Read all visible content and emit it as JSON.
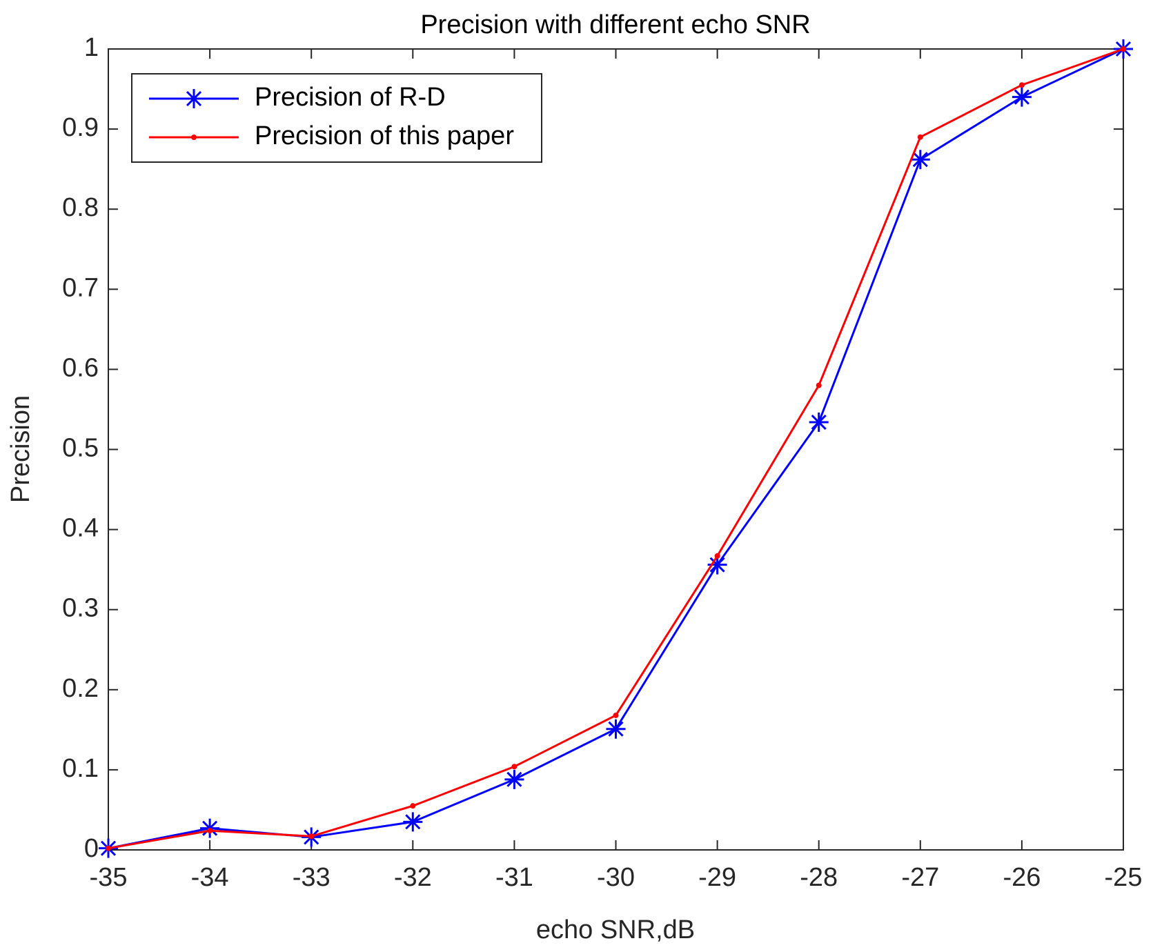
{
  "chart_data": {
    "type": "line",
    "title": "Precision with different echo SNR",
    "xlabel": "echo SNR,dB",
    "ylabel": "Precision",
    "x": [
      -35,
      -34,
      -33,
      -32,
      -31,
      -30,
      -29,
      -28,
      -27,
      -26,
      -25
    ],
    "series": [
      {
        "name": "Precision of R-D",
        "color": "#0000ff",
        "marker": "asterisk",
        "values": [
          0.002,
          0.027,
          0.016,
          0.035,
          0.088,
          0.151,
          0.356,
          0.534,
          0.862,
          0.94,
          1.0
        ]
      },
      {
        "name": "Precision of this paper",
        "color": "#ff0000",
        "marker": "dot",
        "values": [
          0.002,
          0.024,
          0.017,
          0.055,
          0.104,
          0.168,
          0.367,
          0.58,
          0.89,
          0.955,
          1.0
        ]
      }
    ],
    "xlim": [
      -35,
      -25
    ],
    "xticks": [
      -35,
      -34,
      -33,
      -32,
      -31,
      -30,
      -29,
      -28,
      -27,
      -26,
      -25
    ],
    "ylim": [
      0,
      1
    ],
    "yticks": [
      0,
      0.1,
      0.2,
      0.3,
      0.4,
      0.5,
      0.6,
      0.7,
      0.8,
      0.9,
      1
    ],
    "grid": false,
    "legend": "upper left"
  }
}
